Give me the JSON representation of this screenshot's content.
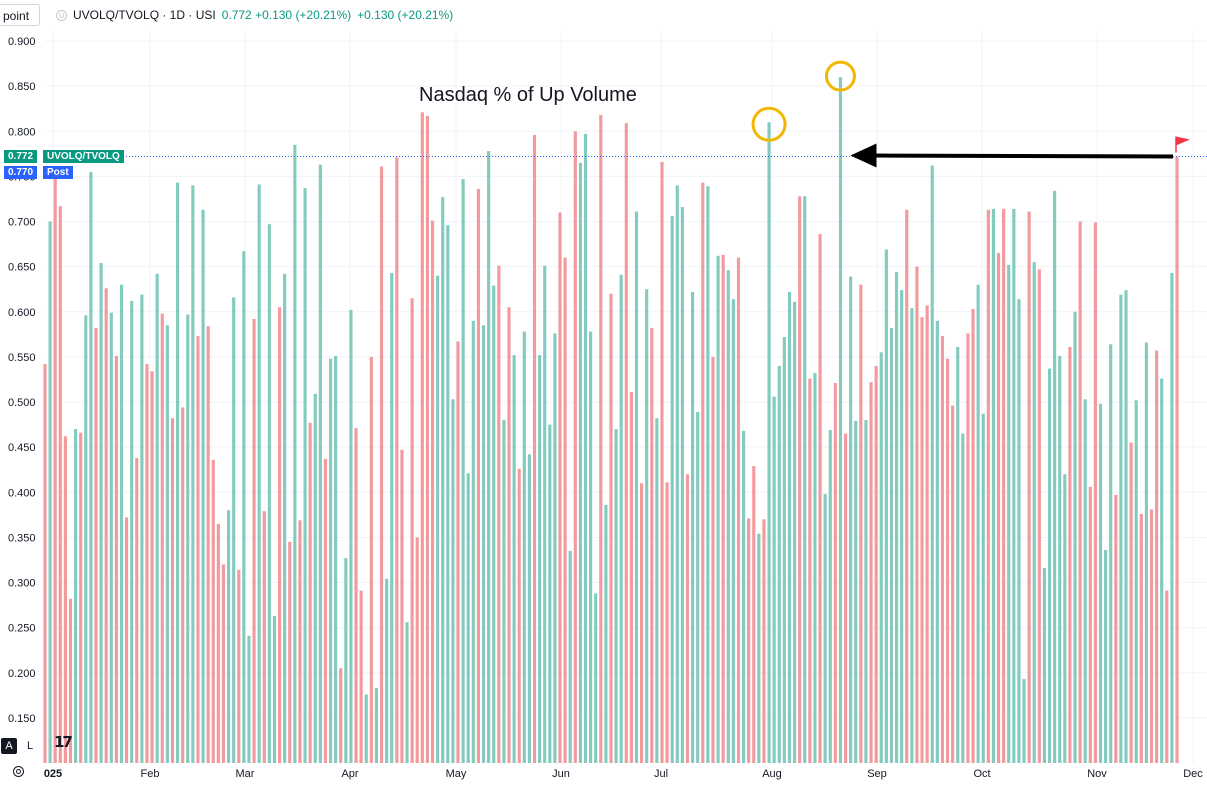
{
  "toolbar": {
    "scale_label": "point"
  },
  "symbol": {
    "name": "UVOLQ/TVOLQ · 1D · USI",
    "quote_1": "0.772 +0.130 (+20.21%)",
    "quote_2": "+0.130 (+20.21%)"
  },
  "price_tags": {
    "last_price": "0.772",
    "last_symbol": "UVOLQ/TVOLQ",
    "post_price": "0.770",
    "post_label": "Post"
  },
  "bottom_left": {
    "mode_a": "A",
    "mode_l": "L",
    "logo": "17"
  },
  "colors": {
    "up": "#84cbbf",
    "down": "#f39a9e",
    "last_line": "#2962ff",
    "highlight": "#f2b705",
    "arrow": "#000000"
  },
  "chart_data": {
    "type": "bar",
    "annotation": "Nasdaq % of Up Volume",
    "ylim": [
      0.1,
      0.9
    ],
    "y_ticks": [
      "0.900",
      "0.850",
      "0.800",
      "0.750",
      "0.700",
      "0.650",
      "0.600",
      "0.550",
      "0.500",
      "0.450",
      "0.400",
      "0.350",
      "0.300",
      "0.250",
      "0.200",
      "0.150"
    ],
    "x_labels": [
      "025",
      "Feb",
      "Mar",
      "Apr",
      "May",
      "Jun",
      "Jul",
      "Aug",
      "Sep",
      "Oct",
      "Nov",
      "Dec"
    ],
    "last_value": 0.772,
    "highlighted_values": [
      0.81,
      0.86
    ],
    "values": [
      0.542,
      0.7,
      0.76,
      0.717,
      0.462,
      0.282,
      0.47,
      0.466,
      0.596,
      0.755,
      0.582,
      0.654,
      0.626,
      0.599,
      0.551,
      0.63,
      0.372,
      0.612,
      0.438,
      0.619,
      0.542,
      0.534,
      0.642,
      0.598,
      0.585,
      0.482,
      0.743,
      0.494,
      0.597,
      0.74,
      0.573,
      0.713,
      0.584,
      0.436,
      0.365,
      0.32,
      0.38,
      0.616,
      0.314,
      0.667,
      0.241,
      0.592,
      0.741,
      0.379,
      0.697,
      0.263,
      0.605,
      0.642,
      0.345,
      0.785,
      0.369,
      0.737,
      0.477,
      0.509,
      0.763,
      0.437,
      0.548,
      0.551,
      0.205,
      0.327,
      0.602,
      0.471,
      0.291,
      0.176,
      0.55,
      0.183,
      0.761,
      0.304,
      0.643,
      0.771,
      0.447,
      0.256,
      0.615,
      0.35,
      0.821,
      0.817,
      0.701,
      0.64,
      0.727,
      0.696,
      0.503,
      0.567,
      0.747,
      0.421,
      0.59,
      0.736,
      0.585,
      0.778,
      0.629,
      0.651,
      0.48,
      0.605,
      0.552,
      0.426,
      0.578,
      0.442,
      0.796,
      0.552,
      0.651,
      0.475,
      0.576,
      0.71,
      0.66,
      0.335,
      0.8,
      0.765,
      0.797,
      0.578,
      0.288,
      0.818,
      0.386,
      0.62,
      0.47,
      0.641,
      0.809,
      0.511,
      0.711,
      0.41,
      0.625,
      0.582,
      0.482,
      0.766,
      0.411,
      0.706,
      0.74,
      0.716,
      0.42,
      0.622,
      0.489,
      0.743,
      0.739,
      0.55,
      0.662,
      0.663,
      0.646,
      0.614,
      0.66,
      0.468,
      0.371,
      0.429,
      0.354,
      0.37,
      0.81,
      0.506,
      0.54,
      0.572,
      0.622,
      0.611,
      0.728,
      0.728,
      0.526,
      0.532,
      0.686,
      0.398,
      0.469,
      0.521,
      0.86,
      0.465,
      0.639,
      0.479,
      0.63,
      0.48,
      0.522,
      0.54,
      0.555,
      0.669,
      0.582,
      0.644,
      0.624,
      0.713,
      0.604,
      0.65,
      0.594,
      0.607,
      0.762,
      0.59,
      0.573,
      0.548,
      0.496,
      0.561,
      0.465,
      0.576,
      0.603,
      0.63,
      0.487,
      0.713,
      0.714,
      0.665,
      0.714,
      0.652,
      0.714,
      0.614,
      0.193,
      0.711,
      0.655,
      0.647,
      0.316,
      0.537,
      0.734,
      0.551,
      0.42,
      0.561,
      0.6,
      0.7,
      0.503,
      0.406,
      0.699,
      0.498,
      0.336,
      0.564,
      0.397,
      0.619,
      0.624,
      0.455,
      0.502,
      0.376,
      0.566,
      0.381,
      0.557,
      0.526,
      0.291,
      0.643,
      0.772
    ],
    "directions": "DUDDDDUDUUDUDUDUDUDUDDUDUDUDUUDUDDDDUUDUUDUDUUDUDUDUDUUDUUDUUDDUDUDUUDDUDDDDDUUUUDUUUDUUUDUDUDUUDUUUUDDUDUUUUDUDUUDDUDUDUDDUUUDUUDUDUDUUDUDDUDUUUUUUDUDUDUUDUDUUDUDDUUUUUDUDDDUUDDDUUDDUUDUDDUUUUDUDUUUUUDUDUDDUUUDUUDUDUDDUDUDUDUDUDUUDU"
  }
}
